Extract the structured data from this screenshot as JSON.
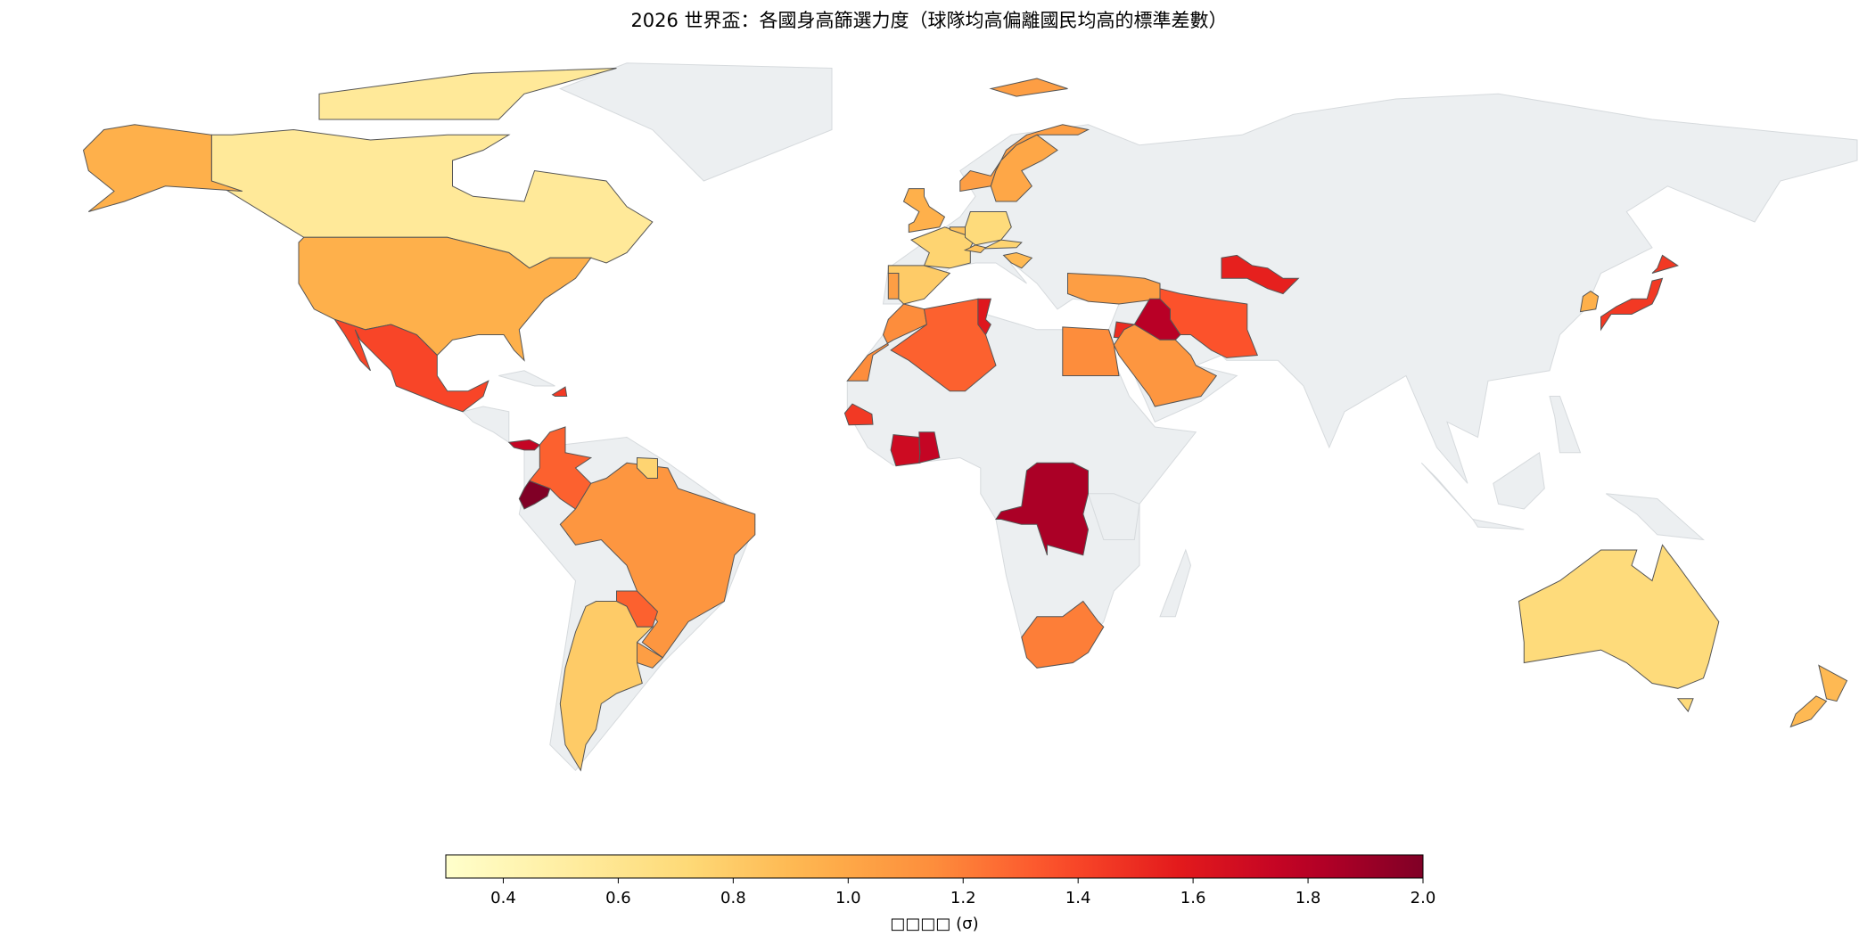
{
  "chart_data": {
    "type": "choropleth",
    "title": "2026 世界盃：各國身高篩選力度（球隊均高偏離國民均高的標準差數）",
    "colormap": "YlOrRd",
    "values": [
      0.55,
      0.95,
      1.4,
      1.75,
      1.45,
      1.3,
      2.0,
      1.1,
      1.3,
      1.05,
      0.8,
      0.75,
      1.05,
      1.0,
      0.95,
      0.75,
      0.8,
      1.05,
      0.7,
      0.85,
      0.85,
      0.75,
      0.9,
      1.05,
      1.8,
      1.5,
      1.35,
      1.1,
      1.15,
      1.15,
      1.3,
      1.6,
      1.45,
      1.7,
      1.75,
      1.85,
      1.2,
      1.55,
      1.45,
      0.95,
      0.7,
      0.9
    ],
    "colorbar": {
      "label": "□□□□ (σ)",
      "lim": [
        0.3,
        2.0
      ],
      "ticks": [
        0.4,
        0.6,
        0.8,
        {
          "value": 1.0,
          "label": "1.0"
        },
        1.2,
        1.4,
        1.6,
        1.8,
        {
          "value": 2.0,
          "label": "2.0"
        }
      ]
    }
  }
}
